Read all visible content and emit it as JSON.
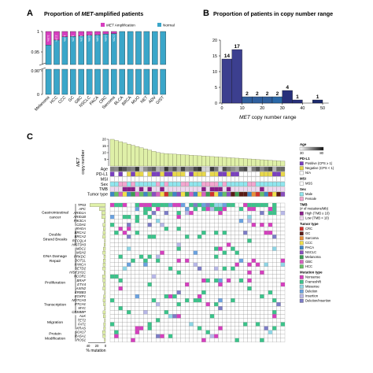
{
  "panels": {
    "a": "A",
    "b": "B",
    "c": "C"
  },
  "chart_data": [
    {
      "type": "bar",
      "title_prefix": "Proportion of ",
      "title_em": "MET",
      "title_suffix": "-amplified patients",
      "categories": [
        "Melanoma",
        "HCC",
        "CCC",
        "GC",
        "GBC",
        "NSCLC",
        "PACA",
        "CRC",
        "Sarcoma",
        "BLCA",
        "BRCA",
        "MUO",
        "NET",
        "ADV",
        "GIST"
      ],
      "amplification": [
        0.033,
        0.021,
        0.013,
        0.012,
        0.011,
        0.009,
        0.008,
        0.006,
        0.005,
        0,
        0,
        0,
        0,
        0,
        0
      ],
      "pct_labels": [
        "3.3%",
        "2.1%",
        "1.3%",
        "1.2%",
        "1.1%",
        "0.9%",
        "0.8%",
        "0.6%",
        "0.5%",
        "",
        "",
        "",
        "",
        "",
        ""
      ],
      "y_ticks": [
        "1",
        "0.95",
        "0.90",
        "0"
      ],
      "legend": [
        {
          "name": "MET Amplification",
          "em": "MET",
          "rest": " Amplification",
          "color": "#d63fbf"
        },
        {
          "name": "Normal",
          "em": "",
          "rest": "Normal",
          "color": "#3aa6c9"
        }
      ]
    },
    {
      "type": "bar",
      "title": "Proportion of patients in copy number range",
      "xlabel_em": "MET",
      "xlabel_rest": " copy number range",
      "x_ticks": [
        0,
        10,
        20,
        30,
        40,
        50
      ],
      "y_ticks": [
        0,
        5,
        10,
        15,
        20
      ],
      "ylim": [
        0,
        20
      ],
      "bins": [
        5,
        10,
        15,
        20,
        25,
        30,
        35,
        40,
        50
      ],
      "values": [
        14,
        17,
        2,
        2,
        2,
        2,
        4,
        1,
        1
      ],
      "value_labels": [
        "14",
        "17",
        "2",
        "2",
        "2",
        "2",
        "4",
        "1",
        "1"
      ],
      "colors": [
        "#3c3f8f",
        "#3c3f8f",
        "#2f5f9e",
        "#2f5f9e",
        "#2f5f9e",
        "#2a68a8",
        "#262f7a",
        "#262f7a",
        "#1c2a6e"
      ]
    },
    {
      "type": "heatmap",
      "title_em": "MET",
      "title_rest": "copy number",
      "cn_ticks": [
        20,
        15,
        10,
        5
      ],
      "annotation_rows": [
        "Age",
        "PD-L1",
        "MSI",
        "Sex",
        "TMB",
        "Tumor type"
      ],
      "xlabel": "% mutation",
      "x_ticks": [
        0,
        20,
        40
      ],
      "gene_groups": [
        {
          "name": "Gastrointestinal cancer",
          "genes": [
            "TP53",
            "APC",
            "ARID1A",
            "ARID1B",
            "PIK3CA",
            "CDH1"
          ]
        },
        {
          "name": "Double Strand Breaks",
          "genes": [
            "RHOA",
            "BRCA1",
            "BRCA2",
            "RECQL4",
            "HIST3H3"
          ]
        },
        {
          "name": "DNA Damage Repair",
          "genes": [
            "MDC1",
            "MSH2",
            "PRKDC",
            "DOT1L",
            "FANCA",
            "SETD2"
          ]
        },
        {
          "name": "Proliferation",
          "genes": [
            "HIST1H1C",
            "NCOR1",
            "BRAF",
            "ETV4",
            "AXIN2",
            "ERBB3"
          ]
        },
        {
          "name": "Transcription",
          "genes": [
            "FOXP1",
            "NOTCH3",
            "PTCH1",
            "MYC",
            "CREBBP"
          ]
        },
        {
          "name": "Migration",
          "genes": [
            "ALK",
            "TET2",
            "FAT1",
            "KRAS"
          ]
        },
        {
          "name": "Protein Modification",
          "genes": [
            "SOX17",
            "RASA1",
            "ROS1"
          ]
        }
      ]
    }
  ],
  "legend_c": {
    "age": {
      "title": "Age",
      "min": "30",
      "max": "80"
    },
    "pdl1": {
      "title": "PD-L1",
      "items": [
        {
          "label": "Positive (CPS ≥ 1)",
          "color": "#7a3fc0"
        },
        {
          "label": "Negative (CPS < 1)",
          "color": "#e8d84a"
        },
        {
          "label": "N/A",
          "color": "#ffffff"
        }
      ]
    },
    "msi": {
      "title": "MSI",
      "items": [
        {
          "label": "MSS",
          "color": "#ffffff"
        }
      ]
    },
    "sex": {
      "title": "Sex",
      "items": [
        {
          "label": "Male",
          "color": "#8fe6ee"
        },
        {
          "label": "Female",
          "color": "#f3a6cf"
        }
      ]
    },
    "tmb": {
      "title": "TMB",
      "subtitle": "(# of mutations/Mb)",
      "items": [
        {
          "label": "High (TMB ≥ 10)",
          "color": "#8a1c8a"
        },
        {
          "label": "Low (TMB < 10)",
          "color": "#f0d8f0"
        }
      ]
    },
    "tumor": {
      "title": "Tumor type",
      "items": [
        {
          "label": "CRC",
          "color": "#d0312d"
        },
        {
          "label": "GC",
          "color": "#5a1a14"
        },
        {
          "label": "Sarcoma",
          "color": "#e8903a"
        },
        {
          "label": "CCC",
          "color": "#f1e04a"
        },
        {
          "label": "PACA",
          "color": "#3f86c6"
        },
        {
          "label": "NSCLC",
          "color": "#8a4fbf"
        },
        {
          "label": "Melanoma",
          "color": "#3a9b52"
        },
        {
          "label": "GBC",
          "color": "#d860c0"
        },
        {
          "label": "HCC",
          "color": "#67c067"
        }
      ]
    },
    "mut": {
      "title": "Mutation type",
      "items": [
        {
          "label": "Nonsense",
          "color": "#d63fbf"
        },
        {
          "label": "Frameshift",
          "color": "#3bc48b"
        },
        {
          "label": "Missense",
          "color": "#8fd6e6"
        },
        {
          "label": "Deletion",
          "color": "#6aa2e0"
        },
        {
          "label": "Insertion",
          "color": "#b8b8e8"
        },
        {
          "label": "Deletion/insertion",
          "color": "#7d7dc7"
        }
      ]
    }
  }
}
